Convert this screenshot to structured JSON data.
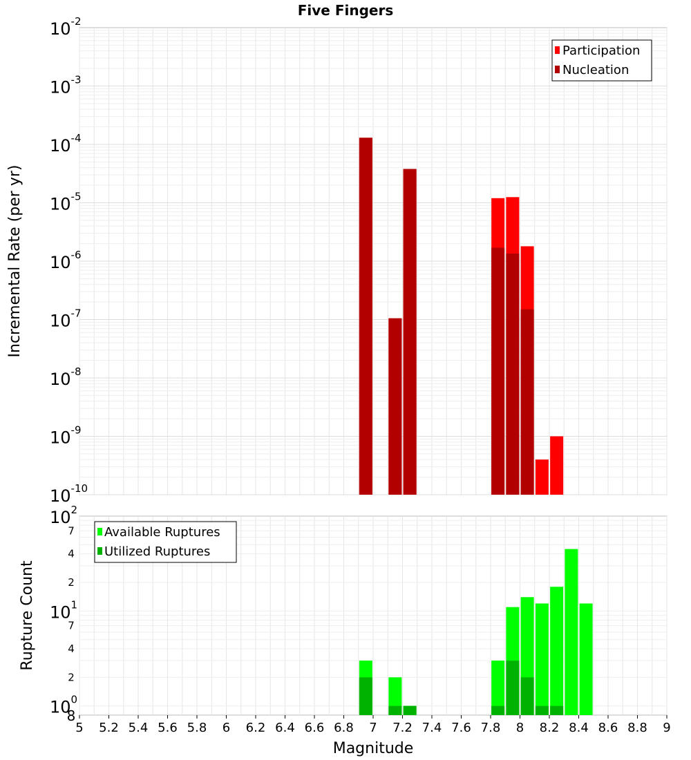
{
  "chart_data": [
    {
      "type": "bar",
      "title": "Five Fingers",
      "ylabel": "Incremental Rate (per yr)",
      "y_scale": "log",
      "ylim_exp": [
        -10,
        -2
      ],
      "xlim": [
        5,
        9
      ],
      "grid": true,
      "legend_position": "top-right",
      "series": [
        {
          "name": "Participation",
          "color": "#ff0000",
          "x": [
            6.95,
            7.15,
            7.25,
            7.85,
            7.95,
            8.05,
            8.15,
            8.25
          ],
          "values": [
            0.00013,
            1.05e-07,
            3.8e-05,
            1.2e-05,
            1.25e-05,
            1.8e-06,
            4e-10,
            1e-09
          ]
        },
        {
          "name": "Nucleation",
          "color": "#b20000",
          "x": [
            6.95,
            7.15,
            7.25,
            7.85,
            7.95,
            8.05
          ],
          "values": [
            0.00013,
            1.05e-07,
            3.8e-05,
            1.7e-06,
            1.35e-06,
            1.5e-07
          ]
        }
      ]
    },
    {
      "type": "bar",
      "xlabel": "Magnitude",
      "ylabel": "Rupture Count",
      "y_scale": "log",
      "ylim": [
        0.8,
        100
      ],
      "xlim": [
        5,
        9
      ],
      "x_ticks": [
        "5",
        "5.2",
        "5.4",
        "5.6",
        "5.8",
        "6",
        "6.2",
        "6.4",
        "6.6",
        "6.8",
        "7",
        "7.2",
        "7.4",
        "7.6",
        "7.8",
        "8",
        "8.2",
        "8.4",
        "8.6",
        "8.8",
        "9"
      ],
      "grid": true,
      "legend_position": "top-left",
      "series": [
        {
          "name": "Available Ruptures",
          "color": "#00ff00",
          "x": [
            6.95,
            7.15,
            7.25,
            7.85,
            7.95,
            8.05,
            8.15,
            8.25,
            8.35,
            8.45
          ],
          "values": [
            3,
            2,
            1,
            3,
            11,
            14,
            12,
            18,
            45,
            12
          ]
        },
        {
          "name": "Utilized Ruptures",
          "color": "#00b200",
          "x": [
            6.95,
            7.15,
            7.25,
            7.85,
            7.95,
            8.05,
            8.15,
            8.25
          ],
          "values": [
            2,
            1,
            1,
            1,
            3,
            2,
            1,
            1
          ]
        }
      ]
    }
  ],
  "top_axis_ticks": [
    {
      "base": "10",
      "exp": "-2"
    },
    {
      "base": "10",
      "exp": "-3"
    },
    {
      "base": "10",
      "exp": "-4"
    },
    {
      "base": "10",
      "exp": "-5"
    },
    {
      "base": "10",
      "exp": "-6"
    },
    {
      "base": "10",
      "exp": "-7"
    },
    {
      "base": "10",
      "exp": "-8"
    },
    {
      "base": "10",
      "exp": "-9"
    },
    {
      "base": "10",
      "exp": "-10"
    }
  ],
  "bottom_axis_ticks": {
    "major": [
      {
        "base": "10",
        "exp": "2"
      },
      {
        "base": "10",
        "exp": "1"
      },
      {
        "base": "10",
        "exp": "0"
      }
    ],
    "minor": [
      {
        "label": "7",
        "value": 70
      },
      {
        "label": "4",
        "value": 40
      },
      {
        "label": "2",
        "value": 20
      },
      {
        "label": "7",
        "value": 7
      },
      {
        "label": "4",
        "value": 4
      },
      {
        "label": "2",
        "value": 2
      },
      {
        "label": "8",
        "value": 0.8
      }
    ]
  }
}
